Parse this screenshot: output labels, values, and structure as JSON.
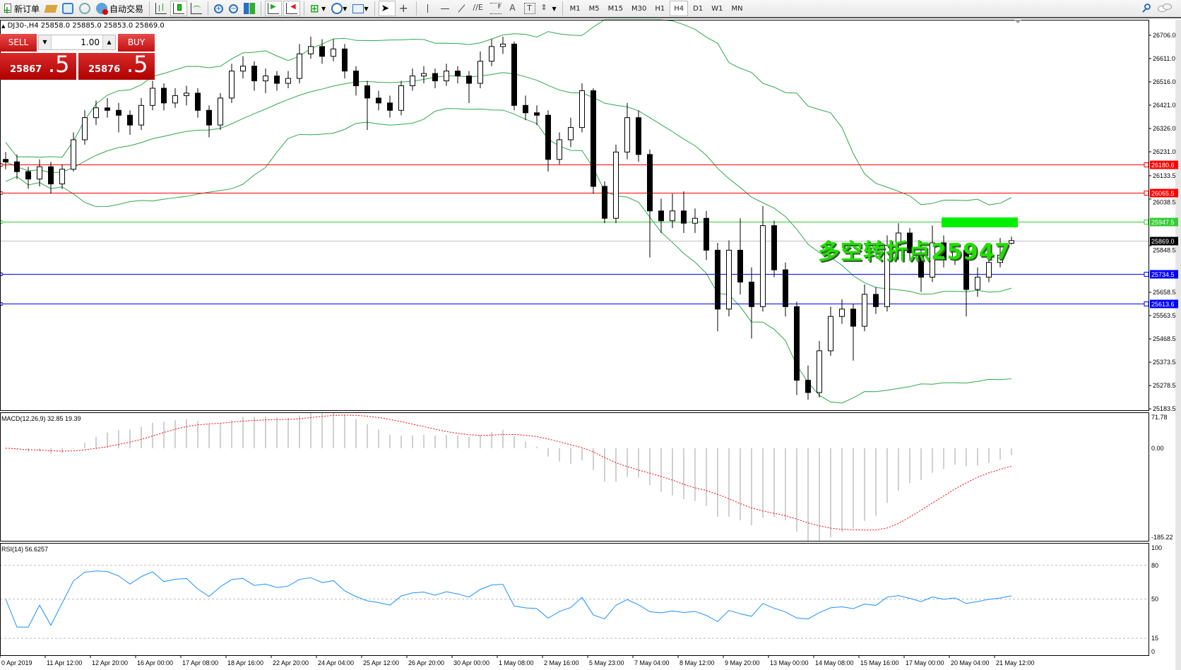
{
  "toolbar": {
    "new_order": "新订单",
    "auto_trading": "自动交易",
    "timeframes": [
      "M1",
      "M5",
      "M15",
      "M30",
      "H1",
      "H4",
      "D1",
      "W1",
      "MN"
    ],
    "active_timeframe": "H4"
  },
  "chart_header": "DJ30-,H4  25858.0 25885.0 25853.0 25869.0",
  "trade_panel": {
    "sell": "SELL",
    "buy": "BUY",
    "lot": "1.00",
    "sell_price_main": "25867",
    "sell_price_frac": ".5",
    "buy_price_main": "25876",
    "buy_price_frac": ".5"
  },
  "annotation": "多空转折点25947",
  "colors": {
    "bull_candle": "#ffffff",
    "bear_candle": "#000000",
    "bands": "#2ea84a",
    "resistance": "#ff0000",
    "pivot": "#33cc33",
    "support": "#0000ff",
    "bid": "#c0c0c0",
    "macd_hist": "#c0c0c0",
    "macd_signal": "#ff0000",
    "rsi": "#1e90ff",
    "highlight": "#00ee00"
  },
  "chart_data": [
    {
      "type": "candlestick",
      "symbol": "DJ30-",
      "timeframe": "H4",
      "ylim": [
        25178,
        26769
      ],
      "price_ticks": [
        "26706.0",
        "26611.0",
        "26516.0",
        "26421.0",
        "26326.0",
        "26231.0",
        "26133.5",
        "26038.5",
        "25848.5",
        "25658.5",
        "25563.5",
        "25468.5",
        "25373.5",
        "25278.5",
        "25183.5"
      ],
      "levels": [
        {
          "value": 26180.6,
          "label": "26180.6",
          "kind": "resistance"
        },
        {
          "value": 26065.5,
          "label": "26065.5",
          "kind": "resistance"
        },
        {
          "value": 25947.5,
          "label": "25947.5",
          "kind": "pivot"
        },
        {
          "value": 25869.0,
          "label": "25869.0",
          "kind": "bid"
        },
        {
          "value": 25734.5,
          "label": "25734.5",
          "kind": "support"
        },
        {
          "value": 25613.6,
          "label": "25613.6",
          "kind": "support"
        }
      ],
      "indicator": "Bollinger Bands",
      "candles": [
        [
          26200,
          26230,
          26160,
          26190
        ],
        [
          26190,
          26220,
          26120,
          26150
        ],
        [
          26150,
          26170,
          26080,
          26120
        ],
        [
          26120,
          26200,
          26090,
          26170
        ],
        [
          26170,
          26190,
          26060,
          26100
        ],
        [
          26100,
          26180,
          26080,
          26160
        ],
        [
          26160,
          26310,
          26150,
          26280
        ],
        [
          26280,
          26400,
          26260,
          26370
        ],
        [
          26370,
          26440,
          26340,
          26410
        ],
        [
          26410,
          26450,
          26370,
          26400
        ],
        [
          26400,
          26430,
          26310,
          26380
        ],
        [
          26380,
          26400,
          26300,
          26340
        ],
        [
          26340,
          26450,
          26320,
          26420
        ],
        [
          26420,
          26520,
          26400,
          26490
        ],
        [
          26490,
          26510,
          26400,
          26430
        ],
        [
          26430,
          26490,
          26410,
          26460
        ],
        [
          26460,
          26500,
          26420,
          26470
        ],
        [
          26470,
          26490,
          26370,
          26400
        ],
        [
          26400,
          26420,
          26290,
          26340
        ],
        [
          26340,
          26470,
          26320,
          26450
        ],
        [
          26450,
          26590,
          26430,
          26560
        ],
        [
          26560,
          26620,
          26530,
          26580
        ],
        [
          26580,
          26600,
          26480,
          26520
        ],
        [
          26520,
          26570,
          26470,
          26540
        ],
        [
          26540,
          26560,
          26480,
          26510
        ],
        [
          26510,
          26560,
          26490,
          26530
        ],
        [
          26530,
          26670,
          26510,
          26630
        ],
        [
          26630,
          26700,
          26610,
          26660
        ],
        [
          26660,
          26690,
          26590,
          26620
        ],
        [
          26620,
          26690,
          26600,
          26650
        ],
        [
          26650,
          26670,
          26530,
          26560
        ],
        [
          26560,
          26580,
          26460,
          26500
        ],
        [
          26500,
          26520,
          26320,
          26450
        ],
        [
          26450,
          26480,
          26400,
          26430
        ],
        [
          26430,
          26460,
          26370,
          26400
        ],
        [
          26400,
          26520,
          26380,
          26500
        ],
        [
          26500,
          26570,
          26480,
          26540
        ],
        [
          26540,
          26580,
          26510,
          26550
        ],
        [
          26550,
          26570,
          26490,
          26520
        ],
        [
          26520,
          26590,
          26500,
          26560
        ],
        [
          26560,
          26580,
          26510,
          26540
        ],
        [
          26540,
          26560,
          26430,
          26510
        ],
        [
          26510,
          26640,
          26490,
          26600
        ],
        [
          26600,
          26690,
          26580,
          26660
        ],
        [
          26660,
          26700,
          26630,
          26670
        ],
        [
          26670,
          26680,
          26400,
          26420
        ],
        [
          26420,
          26460,
          26360,
          26390
        ],
        [
          26390,
          26420,
          26340,
          26380
        ],
        [
          26380,
          26400,
          26150,
          26200
        ],
        [
          26200,
          26310,
          26180,
          26280
        ],
        [
          26280,
          26370,
          26250,
          26330
        ],
        [
          26330,
          26510,
          26310,
          26480
        ],
        [
          26480,
          26490,
          26060,
          26090
        ],
        [
          26090,
          26110,
          25940,
          25960
        ],
        [
          25960,
          26260,
          25940,
          26230
        ],
        [
          26230,
          26430,
          26200,
          26370
        ],
        [
          26370,
          26400,
          26190,
          26220
        ],
        [
          26220,
          26240,
          25800,
          25990
        ],
        [
          25990,
          26040,
          25900,
          25950
        ],
        [
          25950,
          26060,
          25920,
          25990
        ],
        [
          25990,
          26070,
          25900,
          25940
        ],
        [
          25940,
          26000,
          25900,
          25960
        ],
        [
          25960,
          25990,
          25790,
          25830
        ],
        [
          25830,
          25860,
          25500,
          25590
        ],
        [
          25590,
          25870,
          25560,
          25830
        ],
        [
          25830,
          25960,
          25650,
          25700
        ],
        [
          25700,
          25760,
          25470,
          25600
        ],
        [
          25600,
          26010,
          25580,
          25930
        ],
        [
          25930,
          25950,
          25720,
          25750
        ],
        [
          25750,
          25780,
          25560,
          25600
        ],
        [
          25600,
          25620,
          25240,
          25300
        ],
        [
          25300,
          25360,
          25220,
          25250
        ],
        [
          25250,
          25460,
          25230,
          25420
        ],
        [
          25420,
          25600,
          25400,
          25560
        ],
        [
          25560,
          25630,
          25530,
          25590
        ],
        [
          25590,
          25610,
          25380,
          25520
        ],
        [
          25520,
          25690,
          25500,
          25650
        ],
        [
          25650,
          25680,
          25570,
          25600
        ],
        [
          25600,
          25890,
          25580,
          25850
        ],
        [
          25850,
          25940,
          25790,
          25900
        ],
        [
          25900,
          25920,
          25790,
          25820
        ],
        [
          25820,
          25840,
          25660,
          25720
        ],
        [
          25720,
          25930,
          25700,
          25860
        ],
        [
          25860,
          25890,
          25760,
          25790
        ],
        [
          25790,
          25860,
          25770,
          25830
        ],
        [
          25830,
          25850,
          25560,
          25670
        ],
        [
          25670,
          25760,
          25640,
          25720
        ],
        [
          25720,
          25820,
          25700,
          25780
        ],
        [
          25780,
          25880,
          25760,
          25810
        ],
        [
          25858,
          25885,
          25853,
          25869
        ]
      ],
      "time_labels": [
        "0 Apr 2019",
        "11 Apr 12:00",
        "12 Apr 20:00",
        "16 Apr 00:00",
        "17 Apr 08:00",
        "18 Apr 16:00",
        "22 Apr 20:00",
        "24 Apr 04:00",
        "25 Apr 12:00",
        "26 Apr 20:00",
        "30 Apr 00:00",
        "1 May 08:00",
        "2 May 16:00",
        "5 May 23:00",
        "7 May 04:00",
        "8 May 12:00",
        "9 May 20:00",
        "13 May 00:00",
        "14 May 08:00",
        "15 May 16:00",
        "17 May 00:00",
        "20 May 04:00",
        "21 May 12:00"
      ]
    },
    {
      "type": "bar+line",
      "title": "MACD(12,26,9) 32.85 19.39",
      "ylim": [
        -185.22,
        71.78
      ],
      "ticks": [
        "71.78",
        "0.00",
        "-185.22"
      ]
    },
    {
      "type": "line",
      "title": "RSI(14) 56.6257",
      "ylim": [
        0,
        100
      ],
      "ticks": [
        "100",
        "80",
        "50",
        "15",
        "0"
      ],
      "levels": [
        80,
        50,
        15
      ]
    }
  ]
}
